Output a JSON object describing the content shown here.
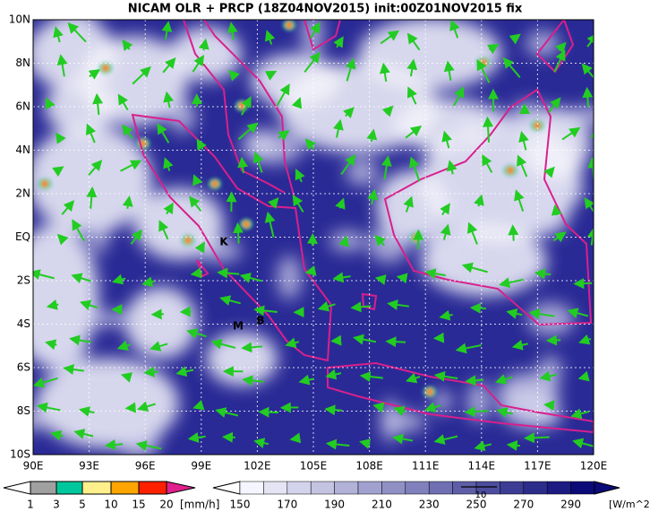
{
  "title": "NICAM OLR + PRCP (18Z04NOV2015) init:00Z01NOV2015 fix",
  "map": {
    "lon_labels": [
      "90E",
      "93E",
      "96E",
      "99E",
      "102E",
      "105E",
      "108E",
      "111E",
      "114E",
      "117E",
      "120E"
    ],
    "lat_labels": [
      "10N",
      "8N",
      "6N",
      "4N",
      "2N",
      "EQ",
      "2S",
      "4S",
      "6S",
      "8S",
      "10S"
    ],
    "place_labels": [
      "K",
      "M",
      "B"
    ]
  },
  "precip_legend": {
    "labels": [
      "1",
      "3",
      "5",
      "10",
      "15",
      "20"
    ],
    "unit": "[mm/h]"
  },
  "olr_legend": {
    "labels": [
      "150",
      "170",
      "190",
      "210",
      "230",
      "250",
      "270",
      "290"
    ],
    "unit": "[W/m^2]"
  },
  "vector_reference": "10"
}
